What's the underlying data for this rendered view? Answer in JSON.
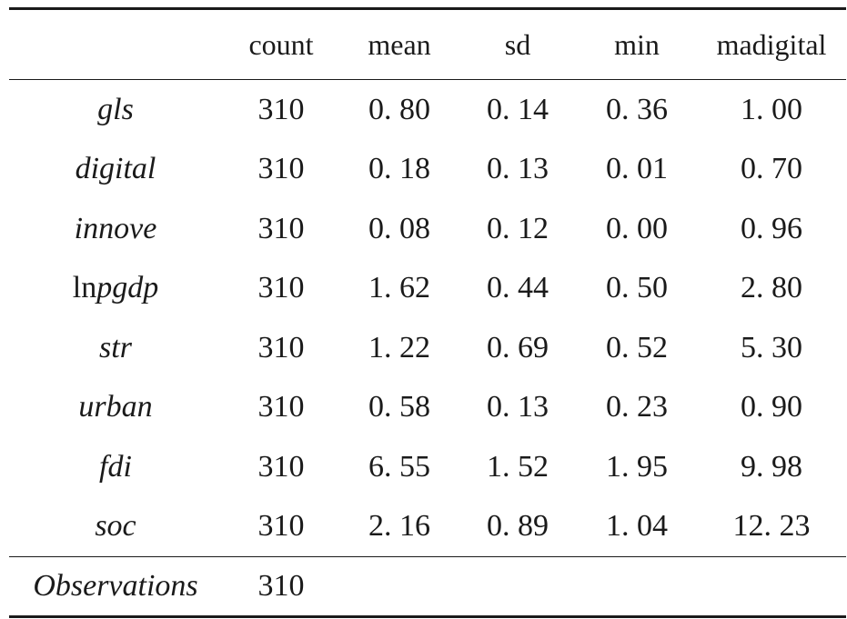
{
  "table": {
    "headers": [
      "",
      "count",
      "mean",
      "sd",
      "min",
      "madigital"
    ],
    "rows": [
      {
        "var_prefix": "",
        "var": "gls",
        "count": "310",
        "mean": "0. 80",
        "sd": "0. 14",
        "min": "0. 36",
        "max": "1. 00"
      },
      {
        "var_prefix": "",
        "var": "digital",
        "count": "310",
        "mean": "0. 18",
        "sd": "0. 13",
        "min": "0. 01",
        "max": "0. 70"
      },
      {
        "var_prefix": "",
        "var": "innove",
        "count": "310",
        "mean": "0. 08",
        "sd": "0. 12",
        "min": "0. 00",
        "max": "0. 96"
      },
      {
        "var_prefix": "ln",
        "var": "pgdp",
        "count": "310",
        "mean": "1. 62",
        "sd": "0. 44",
        "min": "0. 50",
        "max": "2. 80"
      },
      {
        "var_prefix": "",
        "var": "str",
        "count": "310",
        "mean": "1. 22",
        "sd": "0. 69",
        "min": "0. 52",
        "max": "5. 30"
      },
      {
        "var_prefix": "",
        "var": "urban",
        "count": "310",
        "mean": "0. 58",
        "sd": "0. 13",
        "min": "0. 23",
        "max": "0. 90"
      },
      {
        "var_prefix": "",
        "var": "fdi",
        "count": "310",
        "mean": "6. 55",
        "sd": "1. 52",
        "min": "1. 95",
        "max": "9. 98"
      },
      {
        "var_prefix": "",
        "var": "soc",
        "count": "310",
        "mean": "2. 16",
        "sd": "0. 89",
        "min": "1. 04",
        "max": "12. 23"
      }
    ],
    "footer": {
      "label": "Observations",
      "count": "310"
    }
  }
}
